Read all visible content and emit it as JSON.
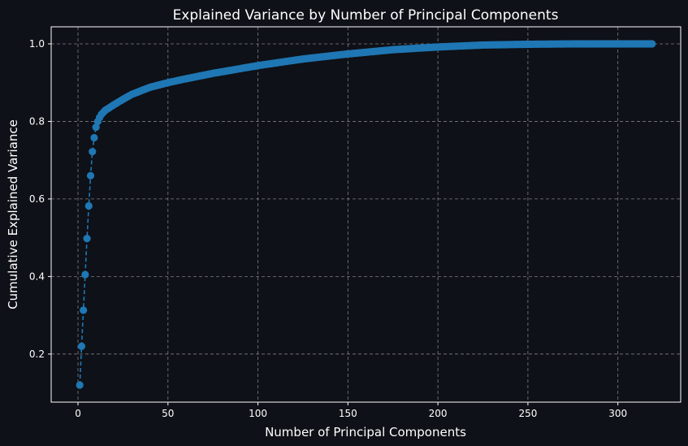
{
  "colors": {
    "background": "#0e1117",
    "text": "#ffffff",
    "axes": "#ffffff",
    "grid": "#9a9a9a",
    "series": "#1f77b4"
  },
  "chart_data": {
    "type": "line",
    "title": "Explained Variance by Number of Principal Components",
    "xlabel": "Number of Principal Components",
    "ylabel": "Cumulative Explained Variance",
    "xlim": [
      -14.9,
      334.9
    ],
    "ylim": [
      0.076,
      1.044
    ],
    "xticks": [
      0,
      50,
      100,
      150,
      200,
      250,
      300
    ],
    "yticks": [
      0.2,
      0.4,
      0.6,
      0.8,
      1.0
    ],
    "xtick_labels": [
      "0",
      "50",
      "100",
      "150",
      "200",
      "250",
      "300"
    ],
    "ytick_labels": [
      "0.2",
      "0.4",
      "0.6",
      "0.8",
      "1.0"
    ],
    "grid": true,
    "line_style": "dashed",
    "marker": "circle",
    "n_components": 319,
    "series": [
      {
        "x": [
          1,
          2,
          3,
          4,
          5,
          6,
          7,
          8,
          9,
          10,
          11,
          12,
          13,
          14,
          15,
          17,
          20,
          25,
          30,
          40,
          50,
          60,
          75,
          100,
          125,
          150,
          175,
          200,
          225,
          250,
          275,
          300,
          319
        ],
        "values": [
          0.12,
          0.22,
          0.313,
          0.405,
          0.498,
          0.582,
          0.66,
          0.722,
          0.758,
          0.785,
          0.8,
          0.81,
          0.818,
          0.823,
          0.828,
          0.834,
          0.843,
          0.857,
          0.87,
          0.888,
          0.9,
          0.91,
          0.924,
          0.944,
          0.961,
          0.974,
          0.985,
          0.992,
          0.997,
          0.999,
          1.0,
          1.0,
          1.0
        ]
      }
    ]
  }
}
